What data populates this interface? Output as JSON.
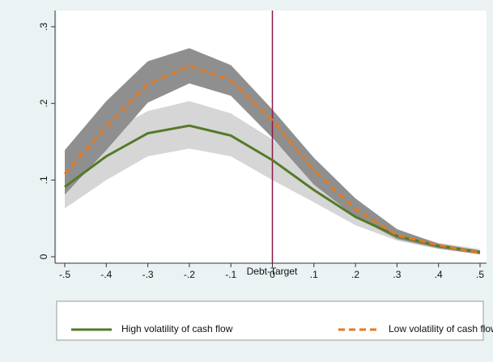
{
  "chart_data": {
    "type": "line",
    "xlabel": "Debt-Target",
    "x": [
      -0.5,
      -0.4,
      -0.3,
      -0.2,
      -0.1,
      0,
      0.1,
      0.2,
      0.3,
      0.4,
      0.5
    ],
    "xlim": [
      -0.5,
      0.5
    ],
    "xticks": [
      {
        "value": -0.5,
        "label": "-.5"
      },
      {
        "value": -0.4,
        "label": "-.4"
      },
      {
        "value": -0.3,
        "label": "-.3"
      },
      {
        "value": -0.2,
        "label": "-.2"
      },
      {
        "value": -0.1,
        "label": "-.1"
      },
      0,
      {
        "value": 0.1,
        "label": ".1"
      },
      {
        "value": 0.2,
        "label": ".2"
      },
      {
        "value": 0.3,
        "label": ".3"
      },
      {
        "value": 0.4,
        "label": ".4"
      },
      {
        "value": 0.5,
        "label": ".5"
      }
    ],
    "ylim": [
      0,
      0.3
    ],
    "yticks": [
      0,
      {
        "value": 0.1,
        "label": ".1"
      },
      {
        "value": 0.2,
        "label": ".2"
      },
      {
        "value": 0.3,
        "label": ".3"
      }
    ],
    "vline": 0,
    "vline_color": "#8b1a4a",
    "grid": false,
    "legend": "bottom",
    "series": [
      {
        "name": "High volatility of cash flow",
        "color": "#557a29",
        "dash": false,
        "band_color": "#d6d6d6",
        "values": [
          0.091,
          0.131,
          0.161,
          0.171,
          0.158,
          0.126,
          0.087,
          0.052,
          0.027,
          0.014,
          0.006
        ],
        "ci_lower": [
          0.063,
          0.1,
          0.131,
          0.141,
          0.131,
          0.1,
          0.071,
          0.041,
          0.021,
          0.01,
          0.003
        ],
        "ci_upper": [
          0.115,
          0.161,
          0.19,
          0.203,
          0.187,
          0.153,
          0.102,
          0.062,
          0.034,
          0.018,
          0.01
        ]
      },
      {
        "name": "Low volatility of cash flow",
        "color": "#e8791c",
        "dash": true,
        "band_color": "#8f8f8f",
        "values": [
          0.108,
          0.17,
          0.225,
          0.249,
          0.23,
          0.178,
          0.113,
          0.062,
          0.028,
          0.015,
          0.005
        ],
        "ci_lower": [
          0.081,
          0.139,
          0.201,
          0.226,
          0.21,
          0.155,
          0.094,
          0.052,
          0.023,
          0.011,
          0.003
        ],
        "ci_upper": [
          0.139,
          0.203,
          0.255,
          0.272,
          0.25,
          0.192,
          0.129,
          0.076,
          0.036,
          0.017,
          0.008
        ]
      }
    ]
  }
}
